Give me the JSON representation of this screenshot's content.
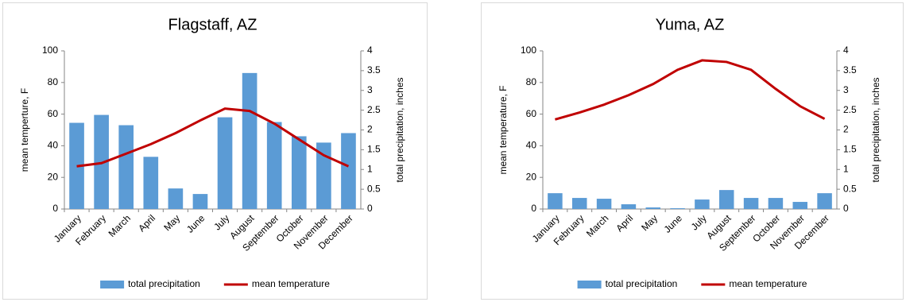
{
  "chart_data": [
    {
      "type": "combo",
      "title": "Flagstaff, AZ",
      "categories": [
        "January",
        "February",
        "March",
        "April",
        "May",
        "June",
        "July",
        "August",
        "September",
        "October",
        "November",
        "December"
      ],
      "ylabel": "mean temperture, F",
      "y2label": "total precipitation, inches",
      "ylim": [
        0,
        100
      ],
      "yticks": [
        0,
        20,
        40,
        60,
        80,
        100
      ],
      "y2lim": [
        0,
        4
      ],
      "y2ticks": [
        0,
        0.5,
        1,
        1.5,
        2,
        2.5,
        3,
        3.5,
        4
      ],
      "legend": "bottom",
      "series": [
        {
          "name": "total precipitation",
          "type": "bar",
          "axis": "y2",
          "color": "#5b9bd5",
          "values": [
            2.18,
            2.38,
            2.12,
            1.32,
            0.52,
            0.38,
            2.32,
            3.44,
            2.2,
            1.84,
            1.68,
            1.92
          ]
        },
        {
          "name": "mean temperature",
          "type": "line",
          "color": "#c00000",
          "values": [
            27,
            29,
            35,
            41,
            48,
            56,
            63.5,
            62,
            54,
            44,
            34,
            27
          ]
        }
      ]
    },
    {
      "type": "combo",
      "title": "Yuma, AZ",
      "categories": [
        "January",
        "February",
        "March",
        "April",
        "May",
        "June",
        "July",
        "August",
        "September",
        "October",
        "November",
        "December"
      ],
      "ylabel": "mean temperature, F",
      "y2label": "total precipitation, inches",
      "ylim": [
        0,
        100
      ],
      "yticks": [
        0,
        20,
        40,
        60,
        80,
        100
      ],
      "y2lim": [
        0,
        4
      ],
      "y2ticks": [
        0,
        0.5,
        1,
        1.5,
        2,
        2.5,
        3,
        3.5,
        4
      ],
      "legend": "bottom",
      "series": [
        {
          "name": "total precipitation",
          "type": "bar",
          "axis": "y2",
          "color": "#5b9bd5",
          "values": [
            0.4,
            0.28,
            0.26,
            0.12,
            0.04,
            0.02,
            0.24,
            0.48,
            0.28,
            0.28,
            0.18,
            0.4
          ]
        },
        {
          "name": "mean temperature",
          "type": "line",
          "color": "#c00000",
          "values": [
            56.6,
            61,
            66,
            72,
            79,
            88,
            94,
            93,
            88,
            76,
            65,
            57
          ]
        }
      ]
    }
  ]
}
